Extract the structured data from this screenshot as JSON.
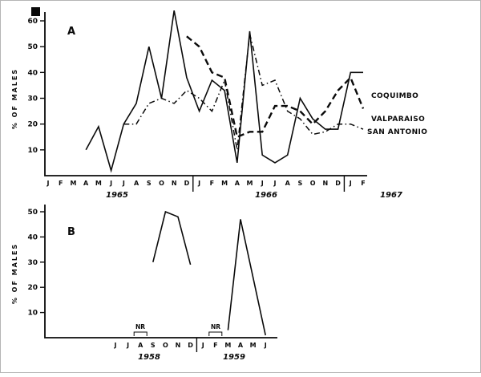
{
  "figure": {
    "background": "#ffffff",
    "ink": "#0a0a0a",
    "border_color": "#b5b5b5"
  },
  "chart_data": [
    {
      "id": "panel_a",
      "type": "line",
      "panel_label": "A",
      "ylabel": "% OF MALES",
      "ylim": [
        0,
        65
      ],
      "yticks": [
        10,
        20,
        30,
        40,
        50,
        60
      ],
      "grid": "off",
      "months": [
        "J",
        "F",
        "M",
        "A",
        "M",
        "J",
        "J",
        "A",
        "S",
        "O",
        "N",
        "D",
        "J",
        "F",
        "M",
        "A",
        "M",
        "J",
        "J",
        "A",
        "S",
        "O",
        "N",
        "D",
        "J",
        "F"
      ],
      "years": [
        {
          "label": "1965",
          "pos": 5.5
        },
        {
          "label": "1966",
          "pos": 17.3
        },
        {
          "label": "1967",
          "pos": 27.2
        }
      ],
      "year_breaks_after": [
        11,
        23
      ],
      "series": [
        {
          "name": "COQUIMBO",
          "style": "solid",
          "values": [
            null,
            null,
            null,
            10,
            19,
            2,
            20,
            28,
            50,
            30,
            64,
            38,
            25,
            37,
            33,
            5,
            56,
            8,
            5,
            8,
            30,
            22,
            18,
            18,
            40,
            40
          ]
        },
        {
          "name": "VALPARAISO",
          "style": "dashed",
          "values": [
            null,
            null,
            null,
            null,
            null,
            null,
            null,
            null,
            null,
            null,
            null,
            54,
            50,
            40,
            38,
            15,
            17,
            17,
            27,
            27,
            25,
            20,
            25,
            33,
            38,
            26
          ]
        },
        {
          "name": "SAN ANTONIO",
          "style": "dashdot",
          "values": [
            null,
            null,
            null,
            null,
            null,
            null,
            20,
            20,
            28,
            30,
            28,
            33,
            30,
            25,
            37,
            10,
            55,
            35,
            37,
            25,
            22,
            16,
            17,
            20,
            20,
            18
          ]
        }
      ],
      "legend_position": "right"
    },
    {
      "id": "panel_b",
      "type": "line",
      "panel_label": "B",
      "ylabel": "% OF MALES",
      "ylim": [
        0,
        52
      ],
      "yticks": [
        10,
        20,
        30,
        40,
        50
      ],
      "grid": "off",
      "months": [
        "J",
        "J",
        "A",
        "S",
        "O",
        "N",
        "D",
        "J",
        "F",
        "M",
        "A",
        "M",
        "J"
      ],
      "years": [
        {
          "label": "1958",
          "pos": 2.7
        },
        {
          "label": "1959",
          "pos": 9.5
        }
      ],
      "year_breaks_after": [
        6
      ],
      "annotations": [
        {
          "label": "NR",
          "pos": 2
        },
        {
          "label": "NR",
          "pos": 8
        }
      ],
      "series": [
        {
          "name": "",
          "style": "solid",
          "values": [
            null,
            null,
            null,
            30,
            50,
            48,
            29,
            null,
            null,
            3,
            47,
            24,
            1
          ]
        }
      ]
    }
  ]
}
